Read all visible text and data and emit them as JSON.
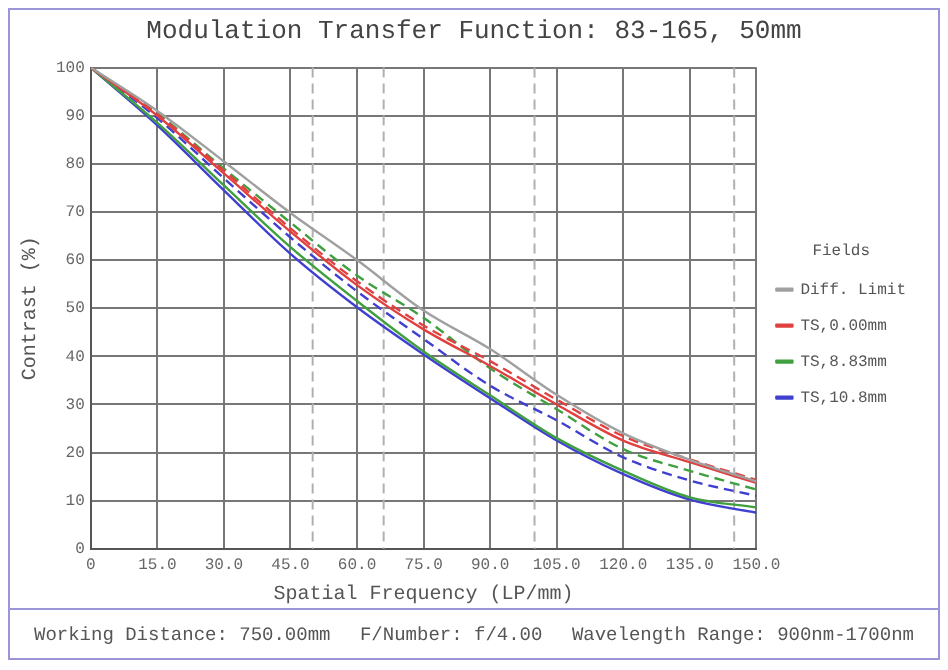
{
  "chart_data": {
    "type": "line",
    "title": "Modulation Transfer Function: 83-165, 50mm",
    "xlabel": "Spatial Frequency (LP/mm)",
    "ylabel": "Contrast (%)",
    "legend_title": "Fields",
    "legend": "right",
    "grid": true,
    "marker": "none",
    "x": [
      0,
      15,
      30,
      45,
      60,
      75,
      90,
      105,
      120,
      135,
      150
    ],
    "xlim": [
      0,
      150
    ],
    "xticks": [
      {
        "value": 0,
        "label": "0"
      },
      {
        "value": 15,
        "label": "15.0"
      },
      {
        "value": 30,
        "label": "30.0"
      },
      {
        "value": 45,
        "label": "45.0"
      },
      {
        "value": 60,
        "label": "60.0"
      },
      {
        "value": 75,
        "label": "75.0"
      },
      {
        "value": 90,
        "label": "90.0"
      },
      {
        "value": 105,
        "label": "105.0"
      },
      {
        "value": 120,
        "label": "120.0"
      },
      {
        "value": 135,
        "label": "135.0"
      },
      {
        "value": 150,
        "label": "150.0"
      }
    ],
    "ylim": [
      0,
      100
    ],
    "yticks": [
      0,
      10,
      20,
      30,
      40,
      50,
      60,
      70,
      80,
      90,
      100
    ],
    "series": [
      {
        "name": "Diff. Limit",
        "color": "#a0a0a0",
        "line_style": "solid",
        "values": [
          100,
          91,
          80.5,
          69.8,
          60,
          49.5,
          41.5,
          32,
          24,
          18.5,
          14
        ]
      },
      {
        "name": "TS,0.00mm",
        "color": "#e04040",
        "line_style": "solid",
        "values": [
          100,
          90,
          78,
          65.9,
          54.8,
          45.6,
          38,
          30,
          22.5,
          18,
          13.7
        ]
      },
      {
        "color": "#e04040",
        "line_style": "dashed",
        "values": [
          100,
          90.3,
          78.6,
          66.6,
          55.6,
          46.4,
          39,
          31,
          23.4,
          18.6,
          14.3
        ]
      },
      {
        "name": "TS,8.83mm",
        "color": "#40a040",
        "line_style": "solid",
        "values": [
          100,
          88.5,
          75.5,
          62.7,
          51.5,
          41,
          31.9,
          23,
          16.2,
          10.7,
          8.6
        ]
      },
      {
        "color": "#40a040",
        "line_style": "dashed",
        "values": [
          100,
          90.5,
          79,
          67.8,
          56.8,
          48,
          37.5,
          29,
          20.7,
          16.2,
          12.3
        ]
      },
      {
        "name": "TS,10.8mm",
        "color": "#4040d0",
        "line_style": "solid",
        "values": [
          100,
          88,
          74.5,
          61.3,
          50.2,
          40.4,
          31.3,
          22.5,
          15.5,
          10.2,
          7.5
        ]
      },
      {
        "color": "#4040d0",
        "line_style": "dashed",
        "values": [
          100,
          89.5,
          77,
          64.7,
          53.5,
          43.6,
          33.9,
          26.7,
          19,
          14.2,
          11
        ]
      }
    ],
    "ref_lines": [
      {
        "axis": "x",
        "value": 50,
        "color": "#b0b0b0",
        "line_style": "dashed"
      },
      {
        "axis": "x",
        "value": 66,
        "color": "#b0b0b0",
        "line_style": "dashed"
      },
      {
        "axis": "x",
        "value": 100,
        "color": "#b0b0b0",
        "line_style": "dashed"
      },
      {
        "axis": "x",
        "value": 145,
        "color": "#b0b0b0",
        "line_style": "dashed"
      }
    ],
    "annotations": [
      "Working Distance: 750.00mm",
      "F/Number: f/4.00",
      "Wavelength Range: 900nm-1700nm"
    ]
  }
}
